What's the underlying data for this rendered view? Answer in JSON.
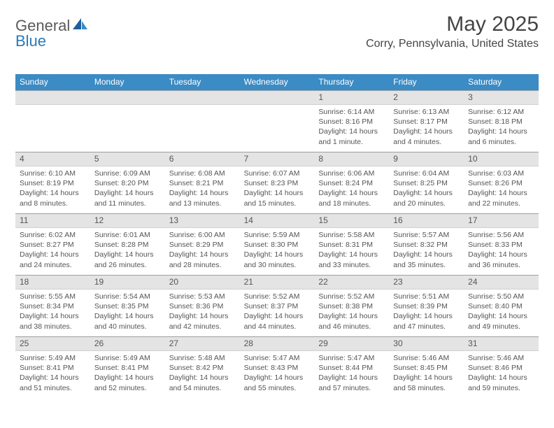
{
  "logo": {
    "text1": "General",
    "text2": "Blue"
  },
  "title": "May 2025",
  "location": "Corry, Pennsylvania, United States",
  "colors": {
    "header_bg": "#3b8bc4",
    "header_text": "#ffffff",
    "daynum_bg": "#e4e4e4",
    "daynum_border": "#9aa0a5",
    "body_text": "#555555",
    "logo_gray": "#5a5a5a",
    "logo_blue": "#2a7ab8",
    "title_color": "#444444"
  },
  "typography": {
    "title_fontsize": 30,
    "location_fontsize": 16,
    "weekday_fontsize": 12,
    "daynum_fontsize": 12,
    "body_fontsize": 10.5
  },
  "weekdays": [
    "Sunday",
    "Monday",
    "Tuesday",
    "Wednesday",
    "Thursday",
    "Friday",
    "Saturday"
  ],
  "weeks": [
    [
      {
        "n": "",
        "sunrise": "",
        "sunset": "",
        "daylight": ""
      },
      {
        "n": "",
        "sunrise": "",
        "sunset": "",
        "daylight": ""
      },
      {
        "n": "",
        "sunrise": "",
        "sunset": "",
        "daylight": ""
      },
      {
        "n": "",
        "sunrise": "",
        "sunset": "",
        "daylight": ""
      },
      {
        "n": "1",
        "sunrise": "Sunrise: 6:14 AM",
        "sunset": "Sunset: 8:16 PM",
        "daylight": "Daylight: 14 hours and 1 minute."
      },
      {
        "n": "2",
        "sunrise": "Sunrise: 6:13 AM",
        "sunset": "Sunset: 8:17 PM",
        "daylight": "Daylight: 14 hours and 4 minutes."
      },
      {
        "n": "3",
        "sunrise": "Sunrise: 6:12 AM",
        "sunset": "Sunset: 8:18 PM",
        "daylight": "Daylight: 14 hours and 6 minutes."
      }
    ],
    [
      {
        "n": "4",
        "sunrise": "Sunrise: 6:10 AM",
        "sunset": "Sunset: 8:19 PM",
        "daylight": "Daylight: 14 hours and 8 minutes."
      },
      {
        "n": "5",
        "sunrise": "Sunrise: 6:09 AM",
        "sunset": "Sunset: 8:20 PM",
        "daylight": "Daylight: 14 hours and 11 minutes."
      },
      {
        "n": "6",
        "sunrise": "Sunrise: 6:08 AM",
        "sunset": "Sunset: 8:21 PM",
        "daylight": "Daylight: 14 hours and 13 minutes."
      },
      {
        "n": "7",
        "sunrise": "Sunrise: 6:07 AM",
        "sunset": "Sunset: 8:23 PM",
        "daylight": "Daylight: 14 hours and 15 minutes."
      },
      {
        "n": "8",
        "sunrise": "Sunrise: 6:06 AM",
        "sunset": "Sunset: 8:24 PM",
        "daylight": "Daylight: 14 hours and 18 minutes."
      },
      {
        "n": "9",
        "sunrise": "Sunrise: 6:04 AM",
        "sunset": "Sunset: 8:25 PM",
        "daylight": "Daylight: 14 hours and 20 minutes."
      },
      {
        "n": "10",
        "sunrise": "Sunrise: 6:03 AM",
        "sunset": "Sunset: 8:26 PM",
        "daylight": "Daylight: 14 hours and 22 minutes."
      }
    ],
    [
      {
        "n": "11",
        "sunrise": "Sunrise: 6:02 AM",
        "sunset": "Sunset: 8:27 PM",
        "daylight": "Daylight: 14 hours and 24 minutes."
      },
      {
        "n": "12",
        "sunrise": "Sunrise: 6:01 AM",
        "sunset": "Sunset: 8:28 PM",
        "daylight": "Daylight: 14 hours and 26 minutes."
      },
      {
        "n": "13",
        "sunrise": "Sunrise: 6:00 AM",
        "sunset": "Sunset: 8:29 PM",
        "daylight": "Daylight: 14 hours and 28 minutes."
      },
      {
        "n": "14",
        "sunrise": "Sunrise: 5:59 AM",
        "sunset": "Sunset: 8:30 PM",
        "daylight": "Daylight: 14 hours and 30 minutes."
      },
      {
        "n": "15",
        "sunrise": "Sunrise: 5:58 AM",
        "sunset": "Sunset: 8:31 PM",
        "daylight": "Daylight: 14 hours and 33 minutes."
      },
      {
        "n": "16",
        "sunrise": "Sunrise: 5:57 AM",
        "sunset": "Sunset: 8:32 PM",
        "daylight": "Daylight: 14 hours and 35 minutes."
      },
      {
        "n": "17",
        "sunrise": "Sunrise: 5:56 AM",
        "sunset": "Sunset: 8:33 PM",
        "daylight": "Daylight: 14 hours and 36 minutes."
      }
    ],
    [
      {
        "n": "18",
        "sunrise": "Sunrise: 5:55 AM",
        "sunset": "Sunset: 8:34 PM",
        "daylight": "Daylight: 14 hours and 38 minutes."
      },
      {
        "n": "19",
        "sunrise": "Sunrise: 5:54 AM",
        "sunset": "Sunset: 8:35 PM",
        "daylight": "Daylight: 14 hours and 40 minutes."
      },
      {
        "n": "20",
        "sunrise": "Sunrise: 5:53 AM",
        "sunset": "Sunset: 8:36 PM",
        "daylight": "Daylight: 14 hours and 42 minutes."
      },
      {
        "n": "21",
        "sunrise": "Sunrise: 5:52 AM",
        "sunset": "Sunset: 8:37 PM",
        "daylight": "Daylight: 14 hours and 44 minutes."
      },
      {
        "n": "22",
        "sunrise": "Sunrise: 5:52 AM",
        "sunset": "Sunset: 8:38 PM",
        "daylight": "Daylight: 14 hours and 46 minutes."
      },
      {
        "n": "23",
        "sunrise": "Sunrise: 5:51 AM",
        "sunset": "Sunset: 8:39 PM",
        "daylight": "Daylight: 14 hours and 47 minutes."
      },
      {
        "n": "24",
        "sunrise": "Sunrise: 5:50 AM",
        "sunset": "Sunset: 8:40 PM",
        "daylight": "Daylight: 14 hours and 49 minutes."
      }
    ],
    [
      {
        "n": "25",
        "sunrise": "Sunrise: 5:49 AM",
        "sunset": "Sunset: 8:41 PM",
        "daylight": "Daylight: 14 hours and 51 minutes."
      },
      {
        "n": "26",
        "sunrise": "Sunrise: 5:49 AM",
        "sunset": "Sunset: 8:41 PM",
        "daylight": "Daylight: 14 hours and 52 minutes."
      },
      {
        "n": "27",
        "sunrise": "Sunrise: 5:48 AM",
        "sunset": "Sunset: 8:42 PM",
        "daylight": "Daylight: 14 hours and 54 minutes."
      },
      {
        "n": "28",
        "sunrise": "Sunrise: 5:47 AM",
        "sunset": "Sunset: 8:43 PM",
        "daylight": "Daylight: 14 hours and 55 minutes."
      },
      {
        "n": "29",
        "sunrise": "Sunrise: 5:47 AM",
        "sunset": "Sunset: 8:44 PM",
        "daylight": "Daylight: 14 hours and 57 minutes."
      },
      {
        "n": "30",
        "sunrise": "Sunrise: 5:46 AM",
        "sunset": "Sunset: 8:45 PM",
        "daylight": "Daylight: 14 hours and 58 minutes."
      },
      {
        "n": "31",
        "sunrise": "Sunrise: 5:46 AM",
        "sunset": "Sunset: 8:46 PM",
        "daylight": "Daylight: 14 hours and 59 minutes."
      }
    ]
  ]
}
